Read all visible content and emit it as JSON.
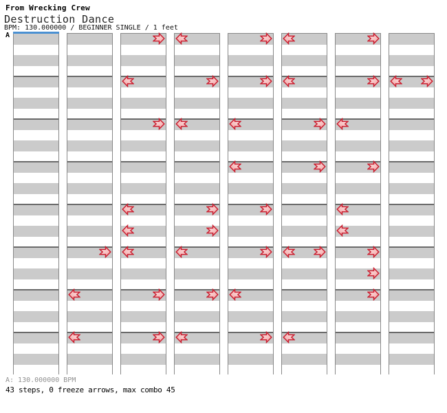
{
  "header": {
    "source": "From Wrecking Crew",
    "title": "Destruction Dance",
    "info": "BPM: 130.000000 / BEGINNER SINGLE / 1 feet",
    "marker_label": "A"
  },
  "footer": {
    "bpm_line": "A: 130.000000 BPM",
    "stats_line": "43 steps, 0 freeze arrows, max combo 45"
  },
  "colors": {
    "stripe_gray": "#cbcbcb",
    "stripe_white": "#ffffff",
    "column_border": "#878787",
    "measure_line": "#6a6a6a",
    "arrow_outline": "#cb1f30",
    "arrow_fill_light": "#fdeaea",
    "arrow_fill_dark": "#f3a2a2",
    "marker_blue": "#4a90d2",
    "footer_gray": "#909090"
  },
  "chart_data": {
    "type": "step_chart",
    "song_title": "Destruction Dance",
    "source_game": "From Wrecking Crew",
    "bpm": "130.000000",
    "difficulty": "BEGINNER SINGLE",
    "feet": 1,
    "steps": 43,
    "freeze_arrows": 0,
    "max_combo": 45,
    "columns": 8,
    "measures_per_column": 8,
    "beats_per_measure": 4,
    "lanes_used": [
      "left",
      "right"
    ],
    "arrows": [
      {
        "col": 1,
        "measure": 5,
        "beat": 0,
        "dir": "right"
      },
      {
        "col": 1,
        "measure": 6,
        "beat": 0,
        "dir": "left"
      },
      {
        "col": 1,
        "measure": 7,
        "beat": 0,
        "dir": "left"
      },
      {
        "col": 2,
        "measure": 0,
        "beat": 0,
        "dir": "right"
      },
      {
        "col": 2,
        "measure": 1,
        "beat": 0,
        "dir": "left"
      },
      {
        "col": 2,
        "measure": 2,
        "beat": 0,
        "dir": "right"
      },
      {
        "col": 2,
        "measure": 4,
        "beat": 0,
        "dir": "left"
      },
      {
        "col": 2,
        "measure": 4,
        "beat": 2,
        "dir": "left"
      },
      {
        "col": 2,
        "measure": 5,
        "beat": 0,
        "dir": "left"
      },
      {
        "col": 2,
        "measure": 6,
        "beat": 0,
        "dir": "right"
      },
      {
        "col": 2,
        "measure": 7,
        "beat": 0,
        "dir": "right"
      },
      {
        "col": 3,
        "measure": 0,
        "beat": 0,
        "dir": "left"
      },
      {
        "col": 3,
        "measure": 1,
        "beat": 0,
        "dir": "right"
      },
      {
        "col": 3,
        "measure": 2,
        "beat": 0,
        "dir": "left"
      },
      {
        "col": 3,
        "measure": 4,
        "beat": 0,
        "dir": "right"
      },
      {
        "col": 3,
        "measure": 4,
        "beat": 2,
        "dir": "right"
      },
      {
        "col": 3,
        "measure": 5,
        "beat": 0,
        "dir": "left"
      },
      {
        "col": 3,
        "measure": 6,
        "beat": 0,
        "dir": "right"
      },
      {
        "col": 3,
        "measure": 7,
        "beat": 0,
        "dir": "left"
      },
      {
        "col": 4,
        "measure": 0,
        "beat": 0,
        "dir": "right"
      },
      {
        "col": 4,
        "measure": 1,
        "beat": 0,
        "dir": "right"
      },
      {
        "col": 4,
        "measure": 2,
        "beat": 0,
        "dir": "left"
      },
      {
        "col": 4,
        "measure": 3,
        "beat": 0,
        "dir": "left"
      },
      {
        "col": 4,
        "measure": 4,
        "beat": 0,
        "dir": "right"
      },
      {
        "col": 4,
        "measure": 5,
        "beat": 0,
        "dir": "right"
      },
      {
        "col": 4,
        "measure": 6,
        "beat": 0,
        "dir": "left"
      },
      {
        "col": 4,
        "measure": 7,
        "beat": 0,
        "dir": "right"
      },
      {
        "col": 5,
        "measure": 0,
        "beat": 0,
        "dir": "left"
      },
      {
        "col": 5,
        "measure": 1,
        "beat": 0,
        "dir": "left"
      },
      {
        "col": 5,
        "measure": 2,
        "beat": 0,
        "dir": "right"
      },
      {
        "col": 5,
        "measure": 3,
        "beat": 0,
        "dir": "right"
      },
      {
        "col": 5,
        "measure": 5,
        "beat": 0,
        "dir": "left"
      },
      {
        "col": 5,
        "measure": 5,
        "beat": 0,
        "dir": "right"
      },
      {
        "col": 5,
        "measure": 7,
        "beat": 0,
        "dir": "left"
      },
      {
        "col": 6,
        "measure": 0,
        "beat": 0,
        "dir": "right"
      },
      {
        "col": 6,
        "measure": 1,
        "beat": 0,
        "dir": "right"
      },
      {
        "col": 6,
        "measure": 2,
        "beat": 0,
        "dir": "left"
      },
      {
        "col": 6,
        "measure": 3,
        "beat": 0,
        "dir": "right"
      },
      {
        "col": 6,
        "measure": 4,
        "beat": 0,
        "dir": "left"
      },
      {
        "col": 6,
        "measure": 4,
        "beat": 2,
        "dir": "left"
      },
      {
        "col": 6,
        "measure": 5,
        "beat": 0,
        "dir": "right"
      },
      {
        "col": 6,
        "measure": 5,
        "beat": 2,
        "dir": "right"
      },
      {
        "col": 6,
        "measure": 6,
        "beat": 0,
        "dir": "right"
      },
      {
        "col": 7,
        "measure": 1,
        "beat": 0,
        "dir": "left"
      },
      {
        "col": 7,
        "measure": 1,
        "beat": 0,
        "dir": "right"
      }
    ]
  }
}
